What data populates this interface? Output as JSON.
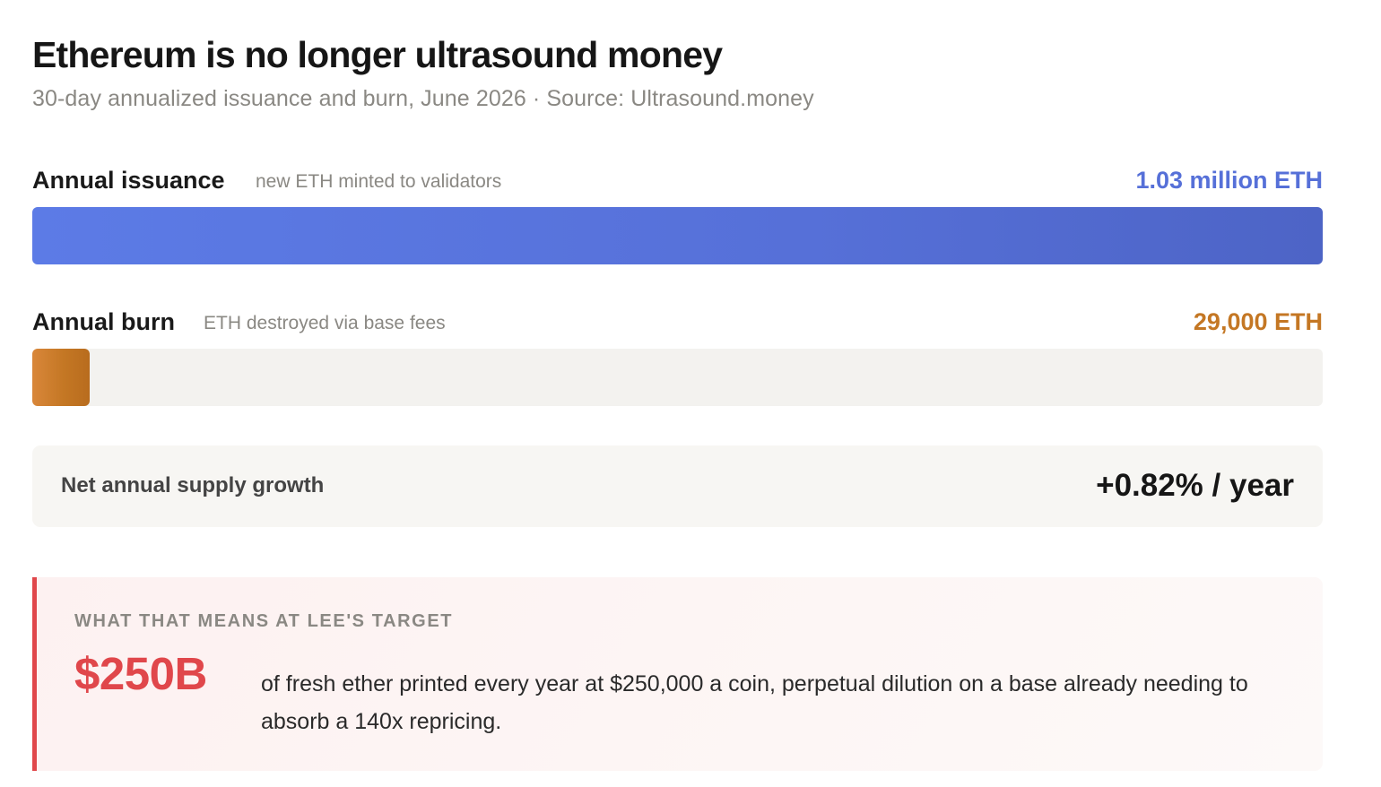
{
  "chart_data": {
    "type": "bar",
    "title": "Ethereum is no longer ultrasound money",
    "subtitle": "30-day annualized issuance and burn, June 2026 · Source: Ultrasound.money",
    "unit": "ETH",
    "series": [
      {
        "label": "Annual issuance",
        "note": "new ETH minted to validators",
        "value": 1030000,
        "value_label": "1.03 million ETH",
        "color": "#5670d8"
      },
      {
        "label": "Annual burn",
        "note": "ETH destroyed via base fees",
        "value": 29000,
        "value_label": "29,000 ETH",
        "color": "#c47724"
      }
    ],
    "scale_max": 1030000
  },
  "net": {
    "label": "Net annual supply growth",
    "value": "+0.82% / year"
  },
  "callout": {
    "kicker": "WHAT THAT MEANS AT LEE'S TARGET",
    "big": "$250B",
    "text": "of fresh ether printed every year at $250,000 a coin, perpetual dilution on a base already needing to absorb a 140x repricing.",
    "accent": "#e0474b"
  }
}
